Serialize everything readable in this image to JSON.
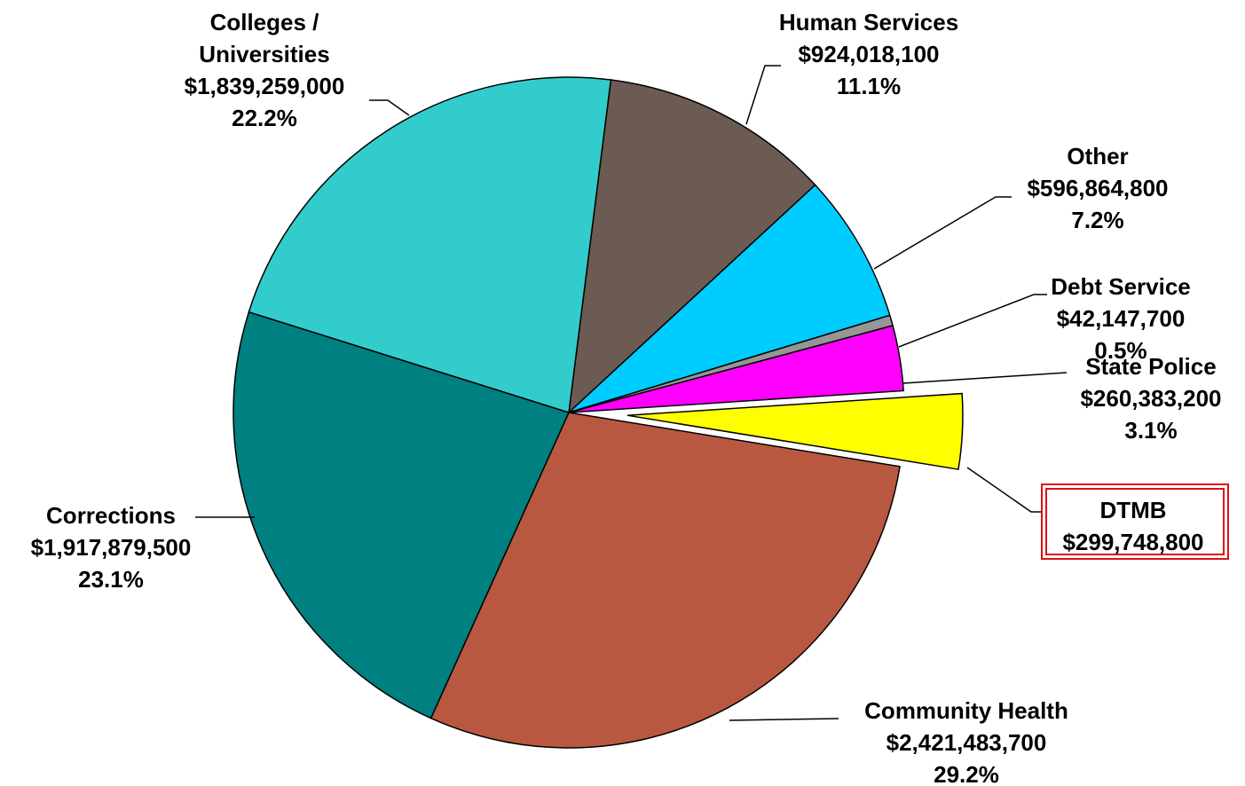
{
  "chart_data": {
    "type": "pie",
    "slices": [
      {
        "key": "human_services",
        "lines": [
          "Human Services",
          "$924,018,100",
          "11.1%"
        ],
        "value": 924018100,
        "percent": 11.1,
        "color": "#6B5B53",
        "exploded": false,
        "boxed": false
      },
      {
        "key": "other",
        "lines": [
          "Other",
          "$596,864,800",
          "7.2%"
        ],
        "value": 596864800,
        "percent": 7.2,
        "color": "#00CCFF",
        "exploded": false,
        "boxed": false
      },
      {
        "key": "debt_service",
        "lines": [
          "Debt Service",
          "$42,147,700",
          "0.5%"
        ],
        "value": 42147700,
        "percent": 0.5,
        "color": "#969696",
        "exploded": false,
        "boxed": false
      },
      {
        "key": "state_police",
        "lines": [
          "State Police",
          "$260,383,200",
          "3.1%"
        ],
        "value": 260383200,
        "percent": 3.1,
        "color": "#FF00FF",
        "exploded": false,
        "boxed": false
      },
      {
        "key": "dtmb",
        "lines": [
          "DTMB",
          "$299,748,800"
        ],
        "value": 299748800,
        "percent": 3.6,
        "color": "#FFFF00",
        "exploded": true,
        "boxed": true,
        "box_border_color": "#E01010"
      },
      {
        "key": "community_health",
        "lines": [
          "Community Health",
          "$2,421,483,700",
          "29.2%"
        ],
        "value": 2421483700,
        "percent": 29.2,
        "color": "#B95841",
        "exploded": false,
        "boxed": false
      },
      {
        "key": "corrections",
        "lines": [
          "Corrections",
          "$1,917,879,500",
          "23.1%"
        ],
        "value": 1917879500,
        "percent": 23.1,
        "color": "#008080",
        "exploded": false,
        "boxed": false
      },
      {
        "key": "colleges_universities",
        "lines": [
          "Colleges /",
          "Universities",
          "$1,839,259,000",
          "22.2%"
        ],
        "value": 1839259000,
        "percent": 22.2,
        "color": "#33CCCC",
        "exploded": false,
        "boxed": false
      }
    ]
  }
}
